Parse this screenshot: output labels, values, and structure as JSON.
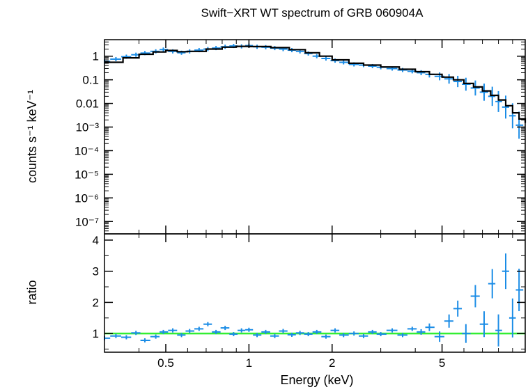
{
  "chart_data": {
    "type": "scatter",
    "title": "Swift−XRT WT spectrum of GRB 060904A",
    "xlabel": "Energy (keV)",
    "xscale": "log",
    "xlim": [
      0.3,
      10
    ],
    "x_ticks": [
      {
        "value": 0.5,
        "label": "0.5"
      },
      {
        "value": 1,
        "label": "1"
      },
      {
        "value": 2,
        "label": "2"
      },
      {
        "value": 5,
        "label": "5"
      }
    ],
    "colors": {
      "data": "#1a8ce6",
      "model": "#000000",
      "unity": "#33ee33",
      "axes": "#000000"
    },
    "panels": [
      {
        "name": "spectrum",
        "ylabel": "counts s⁻¹ keV⁻¹",
        "yscale": "log",
        "ylim": [
          3e-08,
          5
        ],
        "y_ticks": [
          {
            "value": 1,
            "label": "1"
          },
          {
            "value": 0.1,
            "label": "0.1"
          },
          {
            "value": 0.01,
            "label": "0.01"
          },
          {
            "value": 0.001,
            "label": "10⁻³"
          },
          {
            "value": 0.0001,
            "label": "10⁻⁴"
          },
          {
            "value": 1e-05,
            "label": "10⁻⁵"
          },
          {
            "value": 1e-06,
            "label": "10⁻⁶"
          },
          {
            "value": 1e-07,
            "label": "10⁻⁷"
          }
        ],
        "series": [
          {
            "role": "data",
            "points": [
              {
                "x": 0.3,
                "y": 0.6
              },
              {
                "x": 0.33,
                "y": 0.75
              },
              {
                "x": 0.36,
                "y": 0.95
              },
              {
                "x": 0.39,
                "y": 1.15
              },
              {
                "x": 0.42,
                "y": 1.35
              },
              {
                "x": 0.46,
                "y": 1.6
              },
              {
                "x": 0.49,
                "y": 1.9
              },
              {
                "x": 0.53,
                "y": 1.6
              },
              {
                "x": 0.57,
                "y": 1.4
              },
              {
                "x": 0.61,
                "y": 1.6
              },
              {
                "x": 0.66,
                "y": 1.8
              },
              {
                "x": 0.71,
                "y": 2.0
              },
              {
                "x": 0.76,
                "y": 2.2
              },
              {
                "x": 0.82,
                "y": 2.5
              },
              {
                "x": 0.88,
                "y": 2.7
              },
              {
                "x": 0.94,
                "y": 2.6
              },
              {
                "x": 1.0,
                "y": 2.8
              },
              {
                "x": 1.07,
                "y": 2.5
              },
              {
                "x": 1.15,
                "y": 2.4
              },
              {
                "x": 1.24,
                "y": 2.2
              },
              {
                "x": 1.33,
                "y": 2.0
              },
              {
                "x": 1.43,
                "y": 1.8
              },
              {
                "x": 1.53,
                "y": 1.6
              },
              {
                "x": 1.64,
                "y": 1.3
              },
              {
                "x": 1.76,
                "y": 1.0
              },
              {
                "x": 1.9,
                "y": 0.8
              },
              {
                "x": 2.05,
                "y": 0.65
              },
              {
                "x": 2.2,
                "y": 0.55
              },
              {
                "x": 2.4,
                "y": 0.45
              },
              {
                "x": 2.6,
                "y": 0.42
              },
              {
                "x": 2.8,
                "y": 0.38
              },
              {
                "x": 3.0,
                "y": 0.34
              },
              {
                "x": 3.3,
                "y": 0.3
              },
              {
                "x": 3.6,
                "y": 0.26
              },
              {
                "x": 3.9,
                "y": 0.23
              },
              {
                "x": 4.2,
                "y": 0.2
              },
              {
                "x": 4.5,
                "y": 0.17
              },
              {
                "x": 4.9,
                "y": 0.14
              },
              {
                "x": 5.3,
                "y": 0.11
              },
              {
                "x": 5.7,
                "y": 0.085
              },
              {
                "x": 6.1,
                "y": 0.065
              },
              {
                "x": 6.6,
                "y": 0.045
              },
              {
                "x": 7.1,
                "y": 0.03
              },
              {
                "x": 7.6,
                "y": 0.02
              },
              {
                "x": 8.0,
                "y": 0.012
              },
              {
                "x": 8.5,
                "y": 0.007
              },
              {
                "x": 9.0,
                "y": 0.003
              },
              {
                "x": 9.5,
                "y": 0.0012
              }
            ]
          },
          {
            "role": "model",
            "points": [
              {
                "x": 0.3,
                "y": 0.55
              },
              {
                "x": 0.35,
                "y": 0.85
              },
              {
                "x": 0.4,
                "y": 1.2
              },
              {
                "x": 0.45,
                "y": 1.5
              },
              {
                "x": 0.5,
                "y": 1.75
              },
              {
                "x": 0.55,
                "y": 1.55
              },
              {
                "x": 0.6,
                "y": 1.6
              },
              {
                "x": 0.7,
                "y": 2.0
              },
              {
                "x": 0.8,
                "y": 2.4
              },
              {
                "x": 0.9,
                "y": 2.6
              },
              {
                "x": 1.0,
                "y": 2.55
              },
              {
                "x": 1.2,
                "y": 2.3
              },
              {
                "x": 1.4,
                "y": 1.9
              },
              {
                "x": 1.6,
                "y": 1.4
              },
              {
                "x": 1.8,
                "y": 1.0
              },
              {
                "x": 2.0,
                "y": 0.7
              },
              {
                "x": 2.3,
                "y": 0.5
              },
              {
                "x": 2.6,
                "y": 0.42
              },
              {
                "x": 3.0,
                "y": 0.35
              },
              {
                "x": 3.5,
                "y": 0.28
              },
              {
                "x": 4.0,
                "y": 0.22
              },
              {
                "x": 4.5,
                "y": 0.17
              },
              {
                "x": 5.0,
                "y": 0.13
              },
              {
                "x": 5.5,
                "y": 0.1
              },
              {
                "x": 6.0,
                "y": 0.07
              },
              {
                "x": 6.5,
                "y": 0.05
              },
              {
                "x": 7.0,
                "y": 0.034
              },
              {
                "x": 7.5,
                "y": 0.022
              },
              {
                "x": 8.0,
                "y": 0.014
              },
              {
                "x": 8.5,
                "y": 0.008
              },
              {
                "x": 9.0,
                "y": 0.004
              },
              {
                "x": 9.5,
                "y": 0.0022
              },
              {
                "x": 10.0,
                "y": 0.0015
              }
            ]
          }
        ]
      },
      {
        "name": "ratio",
        "ylabel": "ratio",
        "yscale": "linear",
        "ylim": [
          0.4,
          4.2
        ],
        "y_ticks": [
          {
            "value": 1,
            "label": "1"
          },
          {
            "value": 2,
            "label": "2"
          },
          {
            "value": 3,
            "label": "3"
          },
          {
            "value": 4,
            "label": "4"
          }
        ],
        "reference_line": 1.0,
        "series": [
          {
            "role": "data",
            "points": [
              {
                "x": 0.3,
                "y": 0.85
              },
              {
                "x": 0.33,
                "y": 0.92
              },
              {
                "x": 0.36,
                "y": 0.88
              },
              {
                "x": 0.39,
                "y": 1.02
              },
              {
                "x": 0.42,
                "y": 0.78
              },
              {
                "x": 0.46,
                "y": 0.9
              },
              {
                "x": 0.49,
                "y": 1.05
              },
              {
                "x": 0.53,
                "y": 1.1
              },
              {
                "x": 0.57,
                "y": 0.95
              },
              {
                "x": 0.61,
                "y": 1.08
              },
              {
                "x": 0.66,
                "y": 1.15
              },
              {
                "x": 0.71,
                "y": 1.3
              },
              {
                "x": 0.76,
                "y": 1.05
              },
              {
                "x": 0.82,
                "y": 1.18
              },
              {
                "x": 0.88,
                "y": 0.98
              },
              {
                "x": 0.94,
                "y": 1.1
              },
              {
                "x": 1.0,
                "y": 1.12
              },
              {
                "x": 1.07,
                "y": 0.95
              },
              {
                "x": 1.15,
                "y": 1.05
              },
              {
                "x": 1.24,
                "y": 0.92
              },
              {
                "x": 1.33,
                "y": 1.08
              },
              {
                "x": 1.43,
                "y": 0.96
              },
              {
                "x": 1.53,
                "y": 1.02
              },
              {
                "x": 1.64,
                "y": 0.98
              },
              {
                "x": 1.76,
                "y": 1.05
              },
              {
                "x": 1.9,
                "y": 0.9
              },
              {
                "x": 2.05,
                "y": 1.1
              },
              {
                "x": 2.2,
                "y": 0.95
              },
              {
                "x": 2.4,
                "y": 1.0
              },
              {
                "x": 2.6,
                "y": 0.92
              },
              {
                "x": 2.8,
                "y": 1.05
              },
              {
                "x": 3.0,
                "y": 0.98
              },
              {
                "x": 3.3,
                "y": 1.1
              },
              {
                "x": 3.6,
                "y": 0.95
              },
              {
                "x": 3.9,
                "y": 1.15
              },
              {
                "x": 4.2,
                "y": 1.05
              },
              {
                "x": 4.5,
                "y": 1.2
              },
              {
                "x": 4.9,
                "y": 0.9
              },
              {
                "x": 5.3,
                "y": 1.4
              },
              {
                "x": 5.7,
                "y": 1.8
              },
              {
                "x": 6.1,
                "y": 1.0
              },
              {
                "x": 6.6,
                "y": 2.2
              },
              {
                "x": 7.1,
                "y": 1.3
              },
              {
                "x": 7.6,
                "y": 2.6
              },
              {
                "x": 8.0,
                "y": 1.1
              },
              {
                "x": 8.5,
                "y": 3.0
              },
              {
                "x": 9.0,
                "y": 1.5
              },
              {
                "x": 9.5,
                "y": 2.4
              }
            ]
          }
        ]
      }
    ]
  }
}
